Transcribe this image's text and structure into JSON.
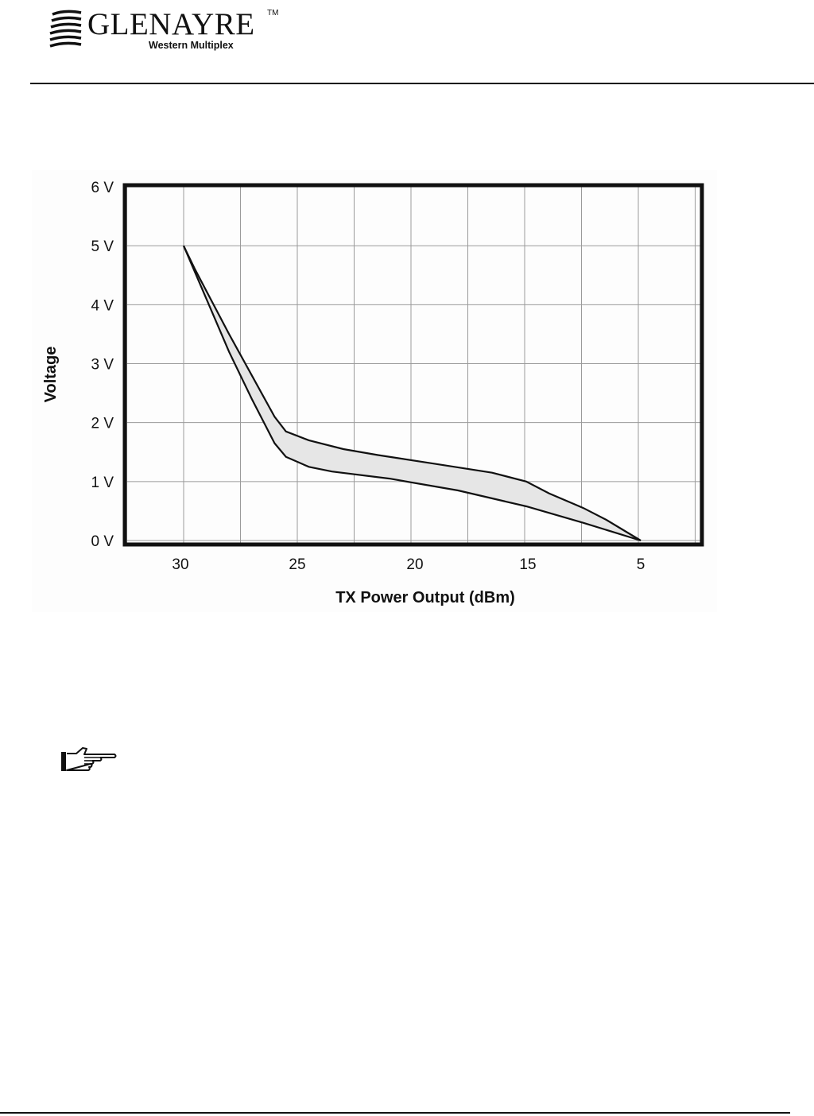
{
  "header": {
    "logo_name": "GLENAYRE",
    "logo_tm": "TM",
    "logo_subtitle": "Western Multiplex",
    "logo_icon": "glenayre-wave-logo-icon"
  },
  "chart_data": {
    "type": "area",
    "xlabel": "TX Power Output (dBm)",
    "ylabel": "Voltage",
    "x_tick_labels": [
      {
        "value": 30,
        "label": "30"
      },
      {
        "value": 25,
        "label": "25"
      },
      {
        "value": 20,
        "label": "20"
      },
      {
        "value": 15,
        "label": "15"
      },
      {
        "value": 5,
        "label": "5"
      }
    ],
    "y_tick_labels": [
      "0 V",
      "1 V",
      "2 V",
      "3 V",
      "4 V",
      "5 V",
      "6 V"
    ],
    "ylim": [
      0,
      6
    ],
    "grid": true,
    "fill_color": "#e6e6e6",
    "line_color": "#111111",
    "series": [
      {
        "points": [
          [
            30.0,
            5.0
          ],
          [
            29.5,
            4.6
          ],
          [
            28.0,
            3.5
          ],
          [
            27.0,
            2.8
          ],
          [
            26.0,
            2.1
          ],
          [
            25.5,
            1.85
          ],
          [
            24.5,
            1.7
          ],
          [
            23.0,
            1.55
          ],
          [
            21.5,
            1.45
          ],
          [
            19.0,
            1.3
          ],
          [
            16.5,
            1.15
          ],
          [
            15.0,
            1.0
          ],
          [
            14.0,
            0.8
          ],
          [
            12.5,
            0.55
          ],
          [
            11.5,
            0.35
          ],
          [
            10.0,
            0.0
          ]
        ]
      },
      {
        "points": [
          [
            30.0,
            5.0
          ],
          [
            29.0,
            4.1
          ],
          [
            28.0,
            3.2
          ],
          [
            27.0,
            2.4
          ],
          [
            26.0,
            1.65
          ],
          [
            25.5,
            1.42
          ],
          [
            24.5,
            1.25
          ],
          [
            23.5,
            1.17
          ],
          [
            21.0,
            1.05
          ],
          [
            18.0,
            0.85
          ],
          [
            15.0,
            0.58
          ],
          [
            12.5,
            0.3
          ],
          [
            10.0,
            0.0
          ]
        ]
      }
    ]
  },
  "note_icon": "pointing-hand-icon"
}
